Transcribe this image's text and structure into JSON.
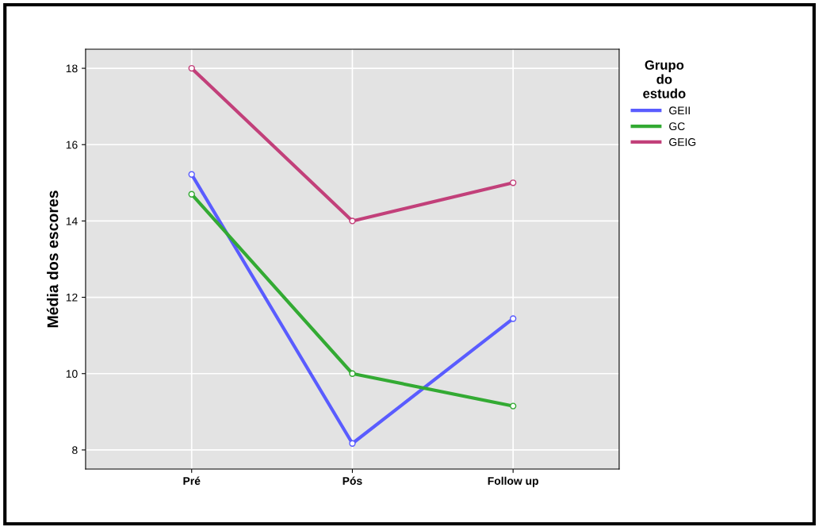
{
  "chart_data": {
    "type": "line",
    "ylabel": "Média dos escores",
    "legend_title": "Grupo\ndo\nestudo",
    "categories": [
      "Pré",
      "Pós",
      "Follow up"
    ],
    "series": [
      {
        "name": "GEII",
        "color": "#5a5cff",
        "values": [
          15.22,
          8.17,
          11.44
        ]
      },
      {
        "name": "GC",
        "color": "#33aa33",
        "values": [
          14.7,
          10.0,
          9.15
        ]
      },
      {
        "name": "GEIG",
        "color": "#c2407a",
        "values": [
          18.0,
          14.0,
          15.0
        ]
      }
    ],
    "ylim": [
      7.5,
      18.5
    ],
    "yticks": [
      8,
      10,
      12,
      14,
      16,
      18
    ],
    "grid": true,
    "legend": "top right",
    "marker": "circle",
    "line_style": "solid"
  }
}
